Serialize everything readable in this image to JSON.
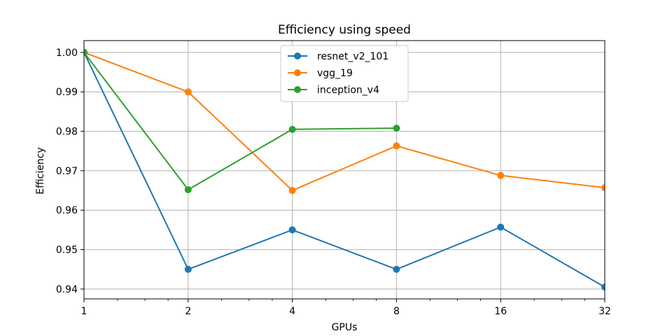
{
  "chart_data": {
    "type": "line",
    "title": "Efficiency using speed",
    "xlabel": "GPUs",
    "ylabel": "Efficiency",
    "x": [
      1,
      2,
      4,
      8,
      16,
      32
    ],
    "x_tick_labels": [
      "1",
      "2",
      "4",
      "8",
      "16",
      "32"
    ],
    "x_scale": "log2",
    "y_ticks": [
      0.94,
      0.95,
      0.96,
      0.97,
      0.98,
      0.99,
      1.0
    ],
    "y_tick_labels": [
      "0.94",
      "0.95",
      "0.96",
      "0.97",
      "0.98",
      "0.99",
      "1.00"
    ],
    "xlim": [
      1,
      32
    ],
    "ylim": [
      0.9375,
      1.003
    ],
    "grid": true,
    "legend_position": "top-center",
    "series": [
      {
        "name": "resnet_v2_101",
        "color": "#1f77b4",
        "x": [
          1,
          2,
          4,
          8,
          16,
          32
        ],
        "values": [
          1.0,
          0.945,
          0.955,
          0.945,
          0.9557,
          0.9405
        ]
      },
      {
        "name": "vgg_19",
        "color": "#ff7f0e",
        "x": [
          1,
          2,
          4,
          8,
          16,
          32
        ],
        "values": [
          1.0,
          0.99,
          0.965,
          0.9763,
          0.9688,
          0.9657
        ]
      },
      {
        "name": "inception_v4",
        "color": "#2ca02c",
        "x": [
          1,
          2,
          4,
          8
        ],
        "values": [
          1.0,
          0.9652,
          0.9805,
          0.9808
        ]
      }
    ]
  }
}
